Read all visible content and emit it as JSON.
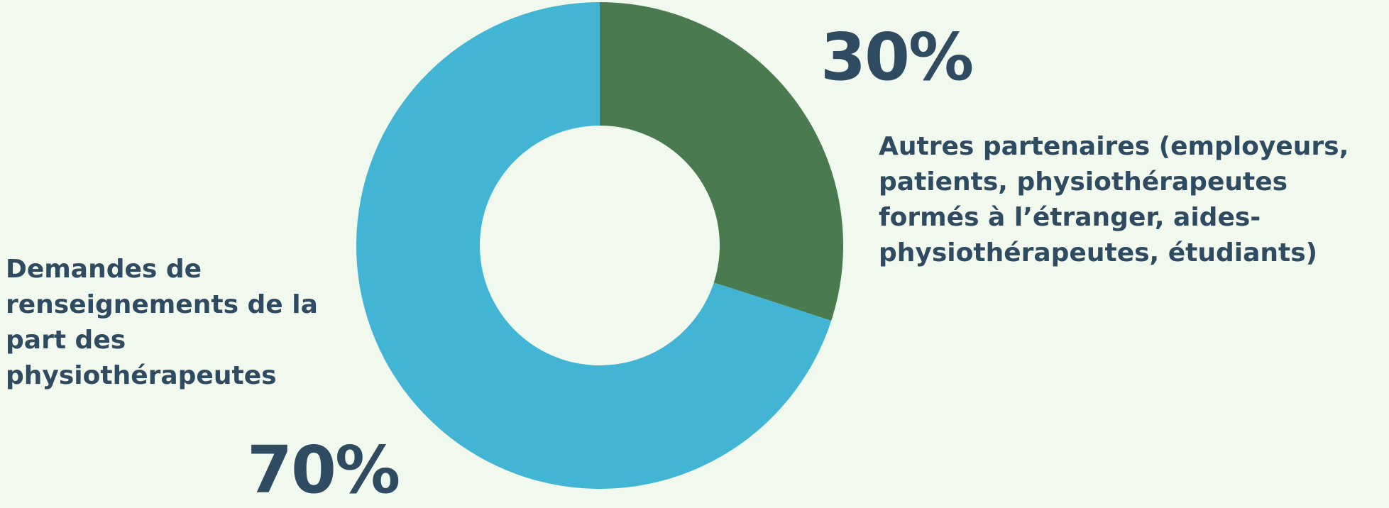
{
  "chart_data": {
    "type": "pie",
    "donut": true,
    "legend": "none",
    "slices": [
      {
        "label": "Autres partenaires (employeurs, patients, physiothérapeutes formés à l’étranger, aides-physiothérapeutes, étudiants)",
        "value": 30,
        "value_label": "30%",
        "color": "#4a7a4f"
      },
      {
        "label": "Demandes de renseignements de la part des physiothérapeutes",
        "value": 70,
        "value_label": "70%",
        "color": "#42b4d4"
      }
    ]
  }
}
